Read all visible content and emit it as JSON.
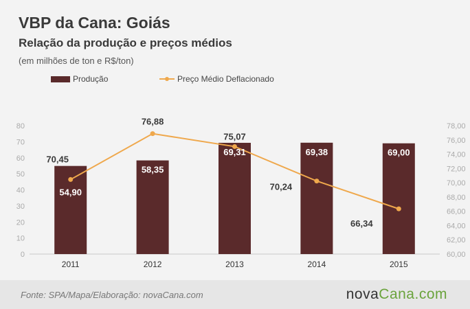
{
  "title": "VBP da Cana: Goiás",
  "subtitle": "Relação da produção e preços médios",
  "units_note": "(em milhões de ton e R$/ton)",
  "legend": {
    "bar_label": "Produção",
    "line_label": "Preço Médio Deflacionado"
  },
  "source": "Fonte: SPA/Mapa/Elaboração: novaCana.com",
  "brand": {
    "part1": "nova",
    "part2": "Cana.com"
  },
  "colors": {
    "bar": "#5a2a2b",
    "line": "#efa84c",
    "background": "#f3f3f3",
    "footer": "#e6e6e6"
  },
  "chart_data": {
    "type": "bar+line",
    "categories": [
      "2011",
      "2012",
      "2013",
      "2014",
      "2015"
    ],
    "series": [
      {
        "name": "Produção",
        "type": "bar",
        "axis": "left",
        "values": [
          54.9,
          58.35,
          69.31,
          69.38,
          69.0
        ],
        "labels": [
          "54,90",
          "58,35",
          "69,31",
          "69,38",
          "69,00"
        ]
      },
      {
        "name": "Preço Médio Deflacionado",
        "type": "line",
        "axis": "right",
        "values": [
          70.45,
          76.88,
          75.07,
          70.24,
          66.34
        ],
        "labels": [
          "70,45",
          "76,88",
          "75,07",
          "70,24",
          "66,34"
        ]
      }
    ],
    "y_left": {
      "min": 0,
      "max": 80,
      "ticks": [
        "0",
        "10",
        "20",
        "30",
        "40",
        "50",
        "60",
        "70",
        "80"
      ]
    },
    "y_right": {
      "min": 60,
      "max": 78,
      "ticks": [
        "60,00",
        "62,00",
        "64,00",
        "66,00",
        "68,00",
        "70,00",
        "72,00",
        "74,00",
        "76,00",
        "78,00"
      ]
    },
    "grid": false,
    "legend_position": "top-left"
  }
}
